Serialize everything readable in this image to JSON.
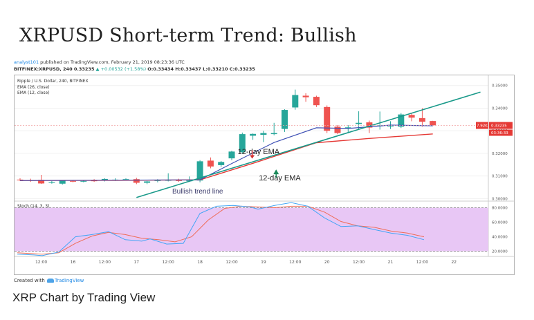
{
  "page": {
    "title": "XRPUSD Short-term Trend: Bullish",
    "caption": "XRP Chart by Trading View"
  },
  "header": {
    "author": "analyst101",
    "published": "published on TradingView.com, February 21, 2019 08:23:36 UTC",
    "symbol_line_prefix": "BITFINEX:XRPUSD, 240 0.33235",
    "change": "▲ +0.00532 (+1.58%)",
    "ohlc": "O:0.33434 H:0.33437 L:0.33210 C:0.33235"
  },
  "footer": {
    "created_with": "Created with",
    "brand": "TradingView"
  },
  "colors": {
    "up": "#26a69a",
    "down": "#ef5350",
    "ema26": "#e53935",
    "ema12": "#3f51b5",
    "trend": "#1a9a8a",
    "stoch_k": "#42a5f5",
    "stoch_d": "#ef6c57",
    "stoch_band": "#e8c7f5",
    "price_tag": "#e53935"
  },
  "chart_data": {
    "type": "candlestick",
    "title": "Ripple / U.S. Dollar, 240, BITFINEX",
    "legend": [
      "EMA (26, close)",
      "EMA (12, close)"
    ],
    "price_axis": {
      "ticks": [
        "0.35000",
        "0.34000",
        "0.33000",
        "0.32000",
        "0.31000",
        "0.30000"
      ],
      "tick_values": [
        0.35,
        0.34,
        0.33,
        0.32,
        0.31,
        0.3
      ],
      "ylim": [
        0.2995,
        0.3545
      ]
    },
    "time_axis": {
      "labels": [
        "12:00",
        "16",
        "12:00",
        "17",
        "12:00",
        "18",
        "12:00",
        "19",
        "12:00",
        "20",
        "12:00",
        "21",
        "12:00",
        "22"
      ],
      "label_bars": [
        2,
        5,
        8,
        11,
        14,
        17,
        20,
        23,
        26,
        29,
        32,
        35,
        38,
        41
      ],
      "bar_count": 43
    },
    "candles": [
      [
        0.3084,
        0.309,
        0.3078,
        0.3082
      ],
      [
        0.3082,
        0.3088,
        0.3074,
        0.3079
      ],
      [
        0.3083,
        0.3105,
        0.3065,
        0.3067
      ],
      [
        0.307,
        0.3078,
        0.3066,
        0.3072
      ],
      [
        0.3066,
        0.3082,
        0.3062,
        0.308
      ],
      [
        0.3078,
        0.3082,
        0.3072,
        0.3075
      ],
      [
        0.3076,
        0.3082,
        0.3072,
        0.3078
      ],
      [
        0.308,
        0.3086,
        0.3074,
        0.3079
      ],
      [
        0.308,
        0.309,
        0.3076,
        0.3087
      ],
      [
        0.3082,
        0.309,
        0.3078,
        0.3084
      ],
      [
        0.3084,
        0.309,
        0.308,
        0.3086
      ],
      [
        0.3086,
        0.3092,
        0.3064,
        0.307
      ],
      [
        0.307,
        0.3078,
        0.3064,
        0.3076
      ],
      [
        0.3078,
        0.3086,
        0.3072,
        0.3082
      ],
      [
        0.308,
        0.3112,
        0.3076,
        0.3082
      ],
      [
        0.3082,
        0.3088,
        0.3074,
        0.3078
      ],
      [
        0.3078,
        0.3098,
        0.3074,
        0.308
      ],
      [
        0.308,
        0.317,
        0.3072,
        0.3165
      ],
      [
        0.3168,
        0.3182,
        0.3134,
        0.3142
      ],
      [
        0.3148,
        0.3166,
        0.314,
        0.3162
      ],
      [
        0.3178,
        0.3212,
        0.317,
        0.3208
      ],
      [
        0.3205,
        0.3292,
        0.32,
        0.3285
      ],
      [
        0.3278,
        0.3288,
        0.326,
        0.3286
      ],
      [
        0.3282,
        0.33,
        0.325,
        0.329
      ],
      [
        0.3285,
        0.3335,
        0.328,
        0.329
      ],
      [
        0.3308,
        0.3395,
        0.3295,
        0.3392
      ],
      [
        0.3403,
        0.3482,
        0.3393,
        0.3458
      ],
      [
        0.3455,
        0.3466,
        0.3428,
        0.3448
      ],
      [
        0.345,
        0.3455,
        0.3405,
        0.3413
      ],
      [
        0.3405,
        0.3412,
        0.329,
        0.33
      ],
      [
        0.3318,
        0.3325,
        0.3285,
        0.329
      ],
      [
        0.331,
        0.3325,
        0.3292,
        0.3315
      ],
      [
        0.333,
        0.3386,
        0.3308,
        0.3335
      ],
      [
        0.3337,
        0.3345,
        0.329,
        0.3314
      ],
      [
        0.332,
        0.3385,
        0.3305,
        0.3324
      ],
      [
        0.332,
        0.3342,
        0.3308,
        0.3322
      ],
      [
        0.3318,
        0.3378,
        0.3312,
        0.3372
      ],
      [
        0.337,
        0.338,
        0.3342,
        0.3358
      ],
      [
        0.3356,
        0.34,
        0.3318,
        0.334
      ],
      [
        0.3343,
        0.3344,
        0.3321,
        0.3324
      ]
    ],
    "ema26": [
      [
        0,
        0.308
      ],
      [
        9,
        0.3081
      ],
      [
        17,
        0.3083
      ],
      [
        22,
        0.3156
      ],
      [
        28,
        0.3247
      ],
      [
        33,
        0.3266
      ],
      [
        39,
        0.3286
      ]
    ],
    "ema12": [
      [
        0,
        0.308
      ],
      [
        17,
        0.3083
      ],
      [
        20,
        0.3155
      ],
      [
        24,
        0.3248
      ],
      [
        28,
        0.3313
      ],
      [
        31,
        0.331
      ],
      [
        35,
        0.3325
      ],
      [
        39,
        0.3322
      ]
    ],
    "trend_line": [
      [
        11,
        0.3005
      ],
      [
        43.5,
        0.3471
      ]
    ],
    "trend_label": "Bullish trend line",
    "price_tag": {
      "value": "0.33235",
      "countdown": "03:36:33",
      "volume": "7.92K",
      "price": 0.33235
    },
    "annotations": [
      {
        "text": "12-day EMA",
        "arrow": "down",
        "x_bar": 22,
        "y": 0.3197,
        "arrow_y": 0.3195
      },
      {
        "text": "12-day EMA",
        "arrow": "up",
        "x_bar": 24,
        "y": 0.308,
        "arrow_y": 0.312
      }
    ],
    "stoch": {
      "label": "Stoch (14, 3, 3)",
      "ticks": [
        "80.0000",
        "60.0000",
        "40.0000",
        "20.0000"
      ],
      "tick_values": [
        80,
        60,
        40,
        20
      ],
      "ylim": [
        13,
        89
      ],
      "band": [
        20,
        80
      ],
      "k": [
        [
          0,
          16
        ],
        [
          2,
          15
        ],
        [
          3,
          14
        ],
        [
          5,
          19
        ],
        [
          7,
          40
        ],
        [
          9,
          43
        ],
        [
          11,
          47
        ],
        [
          13,
          36
        ],
        [
          15,
          34
        ],
        [
          16,
          37
        ],
        [
          18,
          30
        ],
        [
          20,
          31
        ],
        [
          22,
          72
        ],
        [
          24,
          82
        ],
        [
          26,
          83
        ],
        [
          28,
          81
        ],
        [
          29,
          78
        ],
        [
          31,
          83
        ],
        [
          33,
          87
        ],
        [
          35,
          82
        ],
        [
          37,
          66
        ],
        [
          39,
          54
        ],
        [
          41,
          55
        ],
        [
          43,
          50
        ],
        [
          45,
          45
        ],
        [
          47,
          42
        ],
        [
          49,
          36
        ]
      ],
      "d": [
        [
          0,
          18
        ],
        [
          3,
          16
        ],
        [
          5,
          18
        ],
        [
          7,
          31
        ],
        [
          9,
          41
        ],
        [
          11,
          46
        ],
        [
          13,
          43
        ],
        [
          15,
          38
        ],
        [
          17,
          36
        ],
        [
          19,
          33
        ],
        [
          21,
          40
        ],
        [
          23,
          63
        ],
        [
          25,
          79
        ],
        [
          27,
          82
        ],
        [
          29,
          81
        ],
        [
          31,
          80
        ],
        [
          33,
          82
        ],
        [
          35,
          82
        ],
        [
          37,
          74
        ],
        [
          39,
          61
        ],
        [
          41,
          55
        ],
        [
          43,
          53
        ],
        [
          45,
          48
        ],
        [
          47,
          45
        ],
        [
          49,
          40
        ]
      ]
    }
  }
}
